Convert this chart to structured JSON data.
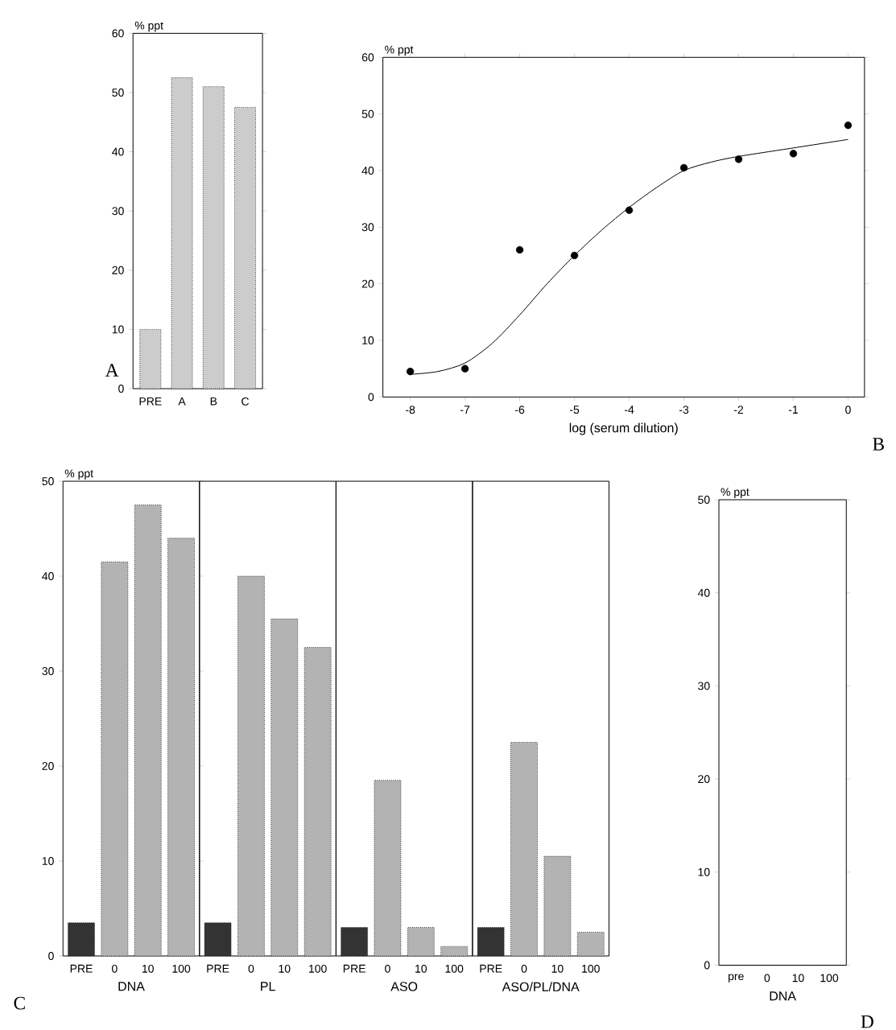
{
  "chart_data": [
    {
      "type": "bar",
      "ylabel": "% ppt",
      "categories": [
        "PRE",
        "A",
        "B",
        "C"
      ],
      "values": [
        10,
        52.5,
        51,
        47.5
      ],
      "colors": [
        "#cccccc",
        "#cccccc",
        "#cccccc",
        "#cccccc"
      ],
      "ylim": [
        0,
        60
      ],
      "yticks": [
        0,
        10,
        20,
        30,
        40,
        50,
        60
      ],
      "annotations": [
        "A"
      ]
    },
    {
      "type": "scatter",
      "xlabel": "log (serum dilution)",
      "ylabel": "% ppt",
      "xlim": [
        -8.5,
        0.3
      ],
      "ylim": [
        0,
        60
      ],
      "xticks": [
        -8,
        -7,
        -6,
        -5,
        -4,
        -3,
        -2,
        -1,
        0
      ],
      "yticks": [
        0,
        10,
        20,
        30,
        40,
        50,
        60
      ],
      "annotations": [
        "B"
      ],
      "series": [
        {
          "type": "scatter",
          "marker": "circle",
          "color": "#000000",
          "x": [
            -8,
            -7,
            -6,
            -5,
            -4,
            -3,
            -2,
            -1,
            0
          ],
          "values": [
            4.5,
            5,
            26,
            25,
            33,
            40.5,
            42,
            43,
            48
          ]
        },
        {
          "type": "line",
          "color": "#000000",
          "x": [
            -8,
            -7.5,
            -7,
            -6.5,
            -6,
            -5.5,
            -5,
            -4.5,
            -4,
            -3.5,
            -3,
            -2.5,
            -2,
            -1,
            0
          ],
          "values": [
            4,
            4.5,
            6,
            9.5,
            14.5,
            20,
            25,
            29.5,
            33.5,
            37,
            40,
            41.5,
            42.5,
            44,
            45.5
          ]
        }
      ]
    },
    {
      "type": "bar",
      "ylabel": "% ppt",
      "xlabel": "DNA",
      "categories": [
        "PRE",
        "0",
        "10",
        "100"
      ],
      "values": [
        3.5,
        41.5,
        47.5,
        44
      ],
      "colors": [
        "#333333",
        "#b3b3b3",
        "#b3b3b3",
        "#b3b3b3"
      ],
      "ylim": [
        0,
        50
      ],
      "yticks": [
        0,
        10,
        20,
        30,
        40,
        50
      ],
      "annotations": [
        "C"
      ]
    },
    {
      "type": "bar",
      "xlabel": "PL",
      "categories": [
        "PRE",
        "0",
        "10",
        "100"
      ],
      "values": [
        3.5,
        40,
        35.5,
        32.5
      ],
      "colors": [
        "#333333",
        "#b3b3b3",
        "#b3b3b3",
        "#b3b3b3"
      ],
      "ylim": [
        0,
        50
      ],
      "tick_labels": "x"
    },
    {
      "type": "bar",
      "xlabel": "ASO",
      "categories": [
        "PRE",
        "0",
        "10",
        "100"
      ],
      "values": [
        3,
        18.5,
        3,
        1
      ],
      "colors": [
        "#333333",
        "#b3b3b3",
        "#b3b3b3",
        "#b3b3b3"
      ],
      "ylim": [
        0,
        50
      ],
      "tick_labels": "x"
    },
    {
      "type": "bar",
      "xlabel": "ASO/PL/DNA",
      "categories": [
        "PRE",
        "0",
        "10",
        "100"
      ],
      "values": [
        3,
        22.5,
        10.5,
        2.5
      ],
      "colors": [
        "#333333",
        "#b3b3b3",
        "#b3b3b3",
        "#b3b3b3"
      ],
      "ylim": [
        0,
        50
      ],
      "tick_labels": "x"
    },
    {
      "type": "bar",
      "ylabel": "% ppt",
      "xlabel": "DNA",
      "categories": [
        "pre",
        "0",
        "10",
        "100"
      ],
      "values": [
        0,
        0,
        0,
        0
      ],
      "colors": [
        "#333333",
        "#b3b3b3",
        "#b3b3b3",
        "#b3b3b3"
      ],
      "ylim": [
        0,
        50
      ],
      "yticks": [
        0,
        10,
        20,
        30,
        40,
        50
      ],
      "annotations": [
        "D"
      ]
    }
  ]
}
